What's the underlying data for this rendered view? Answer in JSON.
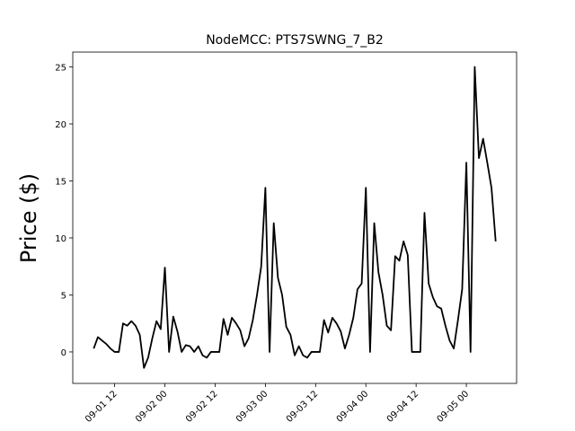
{
  "chart_data": {
    "type": "line",
    "title": "NodeMCC: PTS7SWNG_7_B2",
    "y_label": "Price ($)",
    "color": "#000000",
    "x": [
      "09-01 07",
      "09-01 08",
      "09-01 09",
      "09-01 10",
      "09-01 11",
      "09-01 12",
      "09-01 13",
      "09-01 14",
      "09-01 15",
      "09-01 16",
      "09-01 17",
      "09-01 18",
      "09-01 19",
      "09-01 20",
      "09-01 21",
      "09-01 22",
      "09-01 23",
      "09-02 00",
      "09-02 01",
      "09-02 02",
      "09-02 03",
      "09-02 04",
      "09-02 05",
      "09-02 06",
      "09-02 07",
      "09-02 08",
      "09-02 09",
      "09-02 10",
      "09-02 11",
      "09-02 12",
      "09-02 13",
      "09-02 14",
      "09-02 15",
      "09-02 16",
      "09-02 17",
      "09-02 18",
      "09-02 19",
      "09-02 20",
      "09-02 21",
      "09-02 22",
      "09-02 23",
      "09-03 00",
      "09-03 01",
      "09-03 02",
      "09-03 03",
      "09-03 04",
      "09-03 05",
      "09-03 06",
      "09-03 07",
      "09-03 08",
      "09-03 09",
      "09-03 10",
      "09-03 11",
      "09-03 12",
      "09-03 13",
      "09-03 14",
      "09-03 15",
      "09-03 16",
      "09-03 17",
      "09-03 18",
      "09-03 19",
      "09-03 20",
      "09-03 21",
      "09-03 22",
      "09-03 23",
      "09-04 00",
      "09-04 01",
      "09-04 02",
      "09-04 03",
      "09-04 04",
      "09-04 05",
      "09-04 06",
      "09-04 07",
      "09-04 08",
      "09-04 09",
      "09-04 10",
      "09-04 11",
      "09-04 12",
      "09-04 13",
      "09-04 14",
      "09-04 15",
      "09-04 16",
      "09-04 17",
      "09-04 18",
      "09-04 19",
      "09-04 20",
      "09-04 21",
      "09-04 22",
      "09-04 23",
      "09-05 00",
      "09-05 01",
      "09-05 02",
      "09-05 03",
      "09-05 04",
      "09-05 05",
      "09-05 06",
      "09-05 07"
    ],
    "values": [
      0.3,
      1.3,
      1.0,
      0.7,
      0.3,
      0.0,
      0.0,
      2.5,
      2.3,
      2.7,
      2.3,
      1.5,
      -1.4,
      -0.5,
      1.2,
      2.7,
      2.0,
      7.4,
      0.0,
      3.1,
      1.8,
      0.0,
      0.6,
      0.5,
      0.0,
      0.5,
      -0.3,
      -0.5,
      0.0,
      0.0,
      0.0,
      2.9,
      1.5,
      3.0,
      2.5,
      1.9,
      0.5,
      1.2,
      2.8,
      5.0,
      7.5,
      14.4,
      0.0,
      11.3,
      6.5,
      5.0,
      2.2,
      1.5,
      -0.3,
      0.5,
      -0.3,
      -0.5,
      0.0,
      0.0,
      0.0,
      2.8,
      1.7,
      3.0,
      2.5,
      1.8,
      0.3,
      1.5,
      3.0,
      5.5,
      6.0,
      14.4,
      0.0,
      11.3,
      7.0,
      5.0,
      2.3,
      1.9,
      8.4,
      8.0,
      9.7,
      8.5,
      0.0,
      0.0,
      0.0,
      12.2,
      6.0,
      4.8,
      4.0,
      3.8,
      2.3,
      1.0,
      0.3,
      2.8,
      5.5,
      16.6,
      0.0,
      25.0,
      17.0,
      18.7,
      16.6,
      14.4,
      9.7
    ],
    "xlim": [
      "09-01 02",
      "09-05 12"
    ],
    "xticks": [
      "09-01 12",
      "09-02 00",
      "09-02 12",
      "09-03 00",
      "09-03 12",
      "09-04 00",
      "09-04 12",
      "09-05 00"
    ],
    "ylim": [
      -2.76,
      26.3
    ],
    "yticks": [
      0,
      5,
      10,
      15,
      20,
      25
    ]
  }
}
